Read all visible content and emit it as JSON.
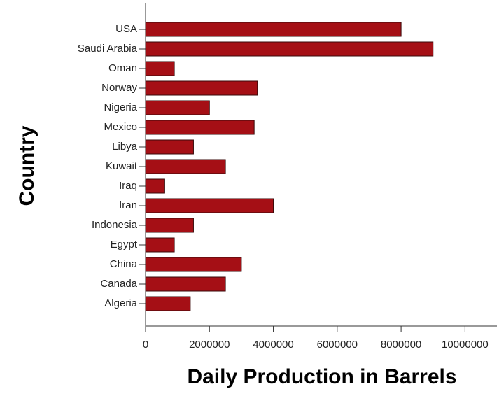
{
  "chart_data": {
    "type": "bar",
    "orientation": "horizontal",
    "x_label": "Daily Production in Barrels",
    "y_label": "Country",
    "categories": [
      "USA",
      "Saudi Arabia",
      "Oman",
      "Norway",
      "Nigeria",
      "Mexico",
      "Libya",
      "Kuwait",
      "Iraq",
      "Iran",
      "Indonesia",
      "Egypt",
      "China",
      "Canada",
      "Algeria"
    ],
    "values": [
      8000000,
      9000000,
      900000,
      3500000,
      2000000,
      3400000,
      1500000,
      2500000,
      600000,
      4000000,
      1500000,
      900000,
      3000000,
      2500000,
      1400000
    ],
    "color": "#a50f15",
    "xlim": [
      0,
      11000000
    ],
    "xticks": [
      0,
      2000000,
      4000000,
      6000000,
      8000000,
      10000000
    ],
    "grid": false
  }
}
